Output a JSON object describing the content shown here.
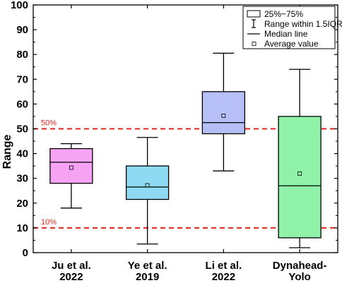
{
  "chart_data": {
    "type": "box",
    "ylabel": "Range",
    "ylim": [
      0,
      100
    ],
    "yticks": [
      0,
      10,
      20,
      30,
      40,
      50,
      60,
      70,
      80,
      90,
      100
    ],
    "categories": [
      {
        "lines": [
          "Ju et al.",
          "2022"
        ],
        "color": "#f5a3f2",
        "whisker_low": 18,
        "q1": 28,
        "median": 36.5,
        "q3": 42,
        "whisker_high": 44,
        "mean": 34.3
      },
      {
        "lines": [
          "Ye et al.",
          "2019"
        ],
        "color": "#8edaf2",
        "whisker_low": 3.5,
        "q1": 21.5,
        "median": 26.5,
        "q3": 35,
        "whisker_high": 46.5,
        "mean": 27.2
      },
      {
        "lines": [
          "Li et al.",
          "2022"
        ],
        "color": "#b7bff7",
        "whisker_low": 33,
        "q1": 48,
        "median": 52.5,
        "q3": 65,
        "whisker_high": 80.5,
        "mean": 55.3
      },
      {
        "lines": [
          "Dynahead-",
          "Yolo"
        ],
        "color": "#8ff2a8",
        "whisker_low": 2,
        "q1": 6,
        "median": 27,
        "q3": 55,
        "whisker_high": 74,
        "mean": 31.9
      }
    ],
    "reference_lines": [
      {
        "value": 50,
        "label": "50%",
        "color": "#e3231b"
      },
      {
        "value": 10,
        "label": "10%",
        "color": "#e3231b"
      }
    ],
    "legend": {
      "position": "top-right",
      "items": [
        "25%~75%",
        "Range within 1.5IQR",
        "Median line",
        "Average value"
      ]
    }
  }
}
